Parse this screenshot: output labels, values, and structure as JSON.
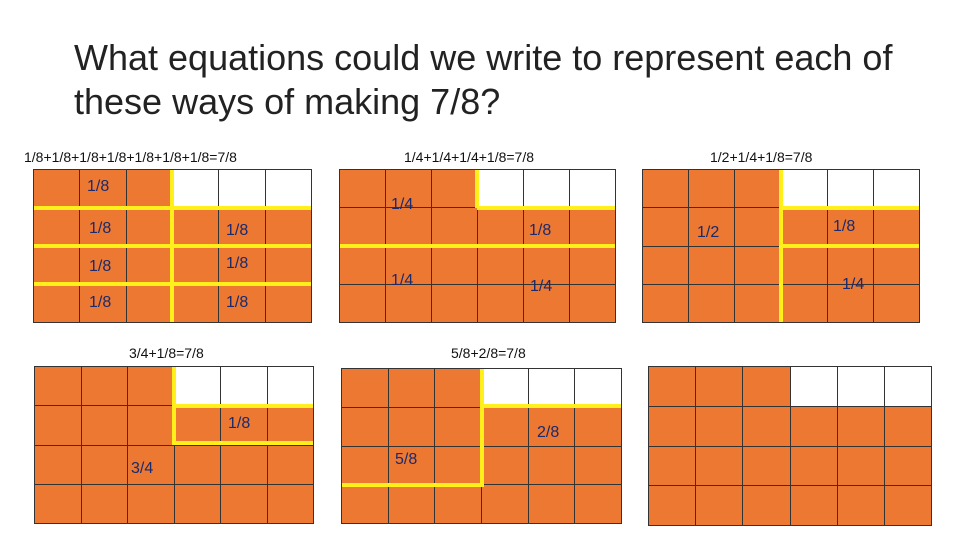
{
  "title": "What equations could we write to represent each of these ways of making 7/8?",
  "colors": {
    "fill": "#ec7832",
    "line": "#ffef1a",
    "empty": "#ffffff"
  },
  "panel1": {
    "caption": "1/8+1/8+1/8+1/8+1/8+1/8+1/8=7/8",
    "labels": [
      "1/8",
      "1/8",
      "1/8",
      "1/8",
      "1/8",
      "1/8",
      "1/8"
    ]
  },
  "panel2": {
    "caption": "1/4+1/4+1/4+1/8=7/8",
    "labels": [
      "1/4",
      "1/8",
      "1/4",
      "1/4"
    ]
  },
  "panel3": {
    "caption": "1/2+1/4+1/8=7/8",
    "labels": [
      "1/2",
      "1/8",
      "1/4"
    ]
  },
  "panel4": {
    "caption": "3/4+1/8=7/8",
    "labels": [
      "1/8",
      "3/4"
    ]
  },
  "panel5": {
    "caption": "5/8+2/8=7/8",
    "labels": [
      "2/8",
      "5/8"
    ]
  },
  "panel6": {
    "caption": ""
  }
}
